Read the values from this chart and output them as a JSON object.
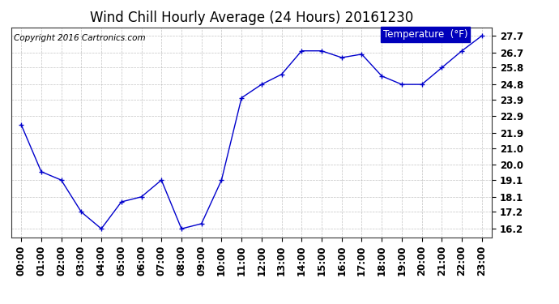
{
  "title": "Wind Chill Hourly Average (24 Hours) 20161230",
  "copyright": "Copyright 2016 Cartronics.com",
  "legend_label": "Temperature  (°F)",
  "hours": [
    0,
    1,
    2,
    3,
    4,
    5,
    6,
    7,
    8,
    9,
    10,
    11,
    12,
    13,
    14,
    15,
    16,
    17,
    18,
    19,
    20,
    21,
    22,
    23
  ],
  "x_labels": [
    "00:00",
    "01:00",
    "02:00",
    "03:00",
    "04:00",
    "05:00",
    "06:00",
    "07:00",
    "08:00",
    "09:00",
    "10:00",
    "11:00",
    "12:00",
    "13:00",
    "14:00",
    "15:00",
    "16:00",
    "17:00",
    "18:00",
    "19:00",
    "20:00",
    "21:00",
    "22:00",
    "23:00"
  ],
  "values": [
    22.4,
    19.6,
    19.1,
    17.2,
    16.2,
    17.8,
    18.1,
    19.1,
    16.2,
    16.5,
    19.1,
    24.0,
    24.8,
    25.4,
    26.8,
    26.8,
    26.4,
    26.6,
    25.3,
    24.8,
    24.8,
    25.8,
    26.8,
    27.7
  ],
  "ylim_min": 15.7,
  "ylim_max": 28.2,
  "yticks": [
    16.2,
    17.2,
    18.1,
    19.1,
    20.0,
    21.0,
    21.9,
    22.9,
    23.9,
    24.8,
    25.8,
    26.7,
    27.7
  ],
  "line_color": "#0000cc",
  "marker_color": "#0000cc",
  "bg_color": "#ffffff",
  "plot_bg_color": "#ffffff",
  "grid_color": "#aaaaaa",
  "legend_bg": "#0000bb",
  "legend_text_color": "#ffffff",
  "title_fontsize": 12,
  "tick_fontsize": 8.5,
  "copyright_fontsize": 7.5
}
